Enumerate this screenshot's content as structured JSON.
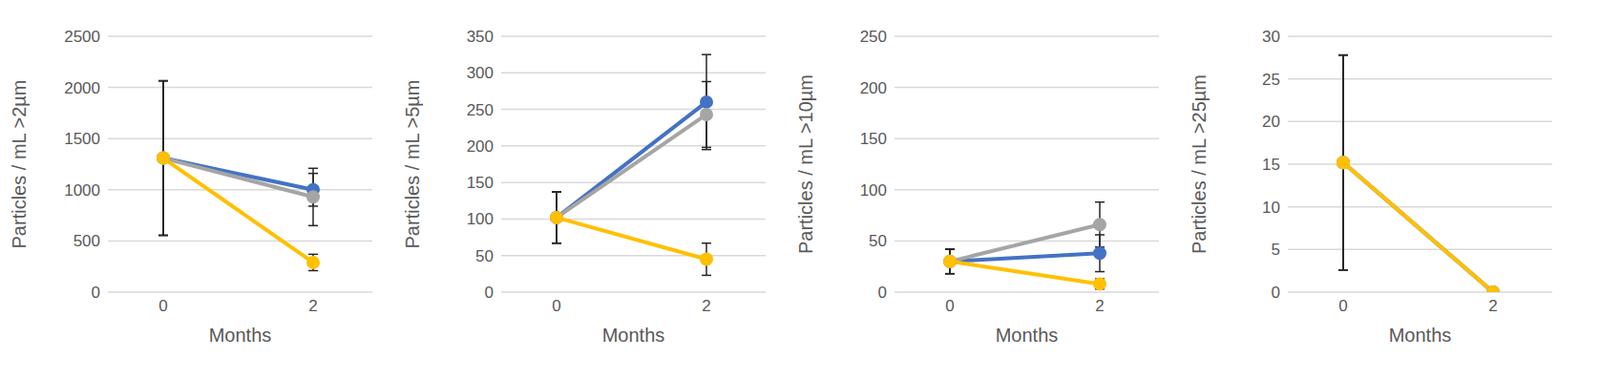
{
  "chart_data": [
    {
      "type": "line",
      "x_label": "Months",
      "y_label": "Particles / mL >2µm",
      "categories": [
        "0",
        "2"
      ],
      "ylim": [
        0,
        2500
      ],
      "yticks": [
        0,
        500,
        1000,
        1500,
        2000,
        2500
      ],
      "grid": true,
      "series": [
        {
          "color": "#4472c4",
          "values": [
            1310,
            1000
          ],
          "errors": [
            755,
            160
          ]
        },
        {
          "color": "#a5a5a5",
          "values": [
            1310,
            930
          ],
          "errors": [
            755,
            280
          ]
        },
        {
          "color": "#ffc000",
          "values": [
            1310,
            290
          ],
          "errors": [
            755,
            80
          ]
        }
      ]
    },
    {
      "type": "line",
      "x_label": "Months",
      "y_label": "Particles  / mL >5µm",
      "categories": [
        "0",
        "2"
      ],
      "ylim": [
        0,
        350
      ],
      "yticks": [
        0,
        50,
        100,
        150,
        200,
        250,
        300,
        350
      ],
      "grid": true,
      "series": [
        {
          "color": "#4472c4",
          "values": [
            102,
            260
          ],
          "errors": [
            35,
            65
          ]
        },
        {
          "color": "#a5a5a5",
          "values": [
            102,
            243
          ],
          "errors": [
            35,
            45
          ]
        },
        {
          "color": "#ffc000",
          "values": [
            102,
            45
          ],
          "errors": [
            35,
            22
          ]
        }
      ]
    },
    {
      "type": "line",
      "x_label": "Months",
      "y_label": "Particles / mL >10µm",
      "categories": [
        "0",
        "2"
      ],
      "ylim": [
        0,
        250
      ],
      "yticks": [
        0,
        50,
        100,
        150,
        200,
        250
      ],
      "grid": true,
      "series": [
        {
          "color": "#4472c4",
          "values": [
            30,
            38
          ],
          "errors": [
            12,
            18
          ]
        },
        {
          "color": "#a5a5a5",
          "values": [
            30,
            66
          ],
          "errors": [
            12,
            22
          ]
        },
        {
          "color": "#ffc000",
          "values": [
            30,
            8
          ],
          "errors": [
            12,
            5
          ]
        }
      ]
    },
    {
      "type": "line",
      "x_label": "Months",
      "y_label": "Particles / mL >25µm",
      "categories": [
        "0",
        "2"
      ],
      "ylim": [
        0,
        30
      ],
      "yticks": [
        0,
        5,
        10,
        15,
        20,
        25,
        30
      ],
      "grid": true,
      "series": [
        {
          "color": "#4472c4",
          "values": [
            15.2,
            0
          ],
          "errors": [
            12.6,
            0
          ]
        },
        {
          "color": "#a5a5a5",
          "values": [
            15.2,
            0
          ],
          "errors": [
            12.6,
            0
          ]
        },
        {
          "color": "#ffc000",
          "values": [
            15.2,
            0
          ],
          "errors": [
            12.6,
            0
          ]
        }
      ]
    }
  ]
}
